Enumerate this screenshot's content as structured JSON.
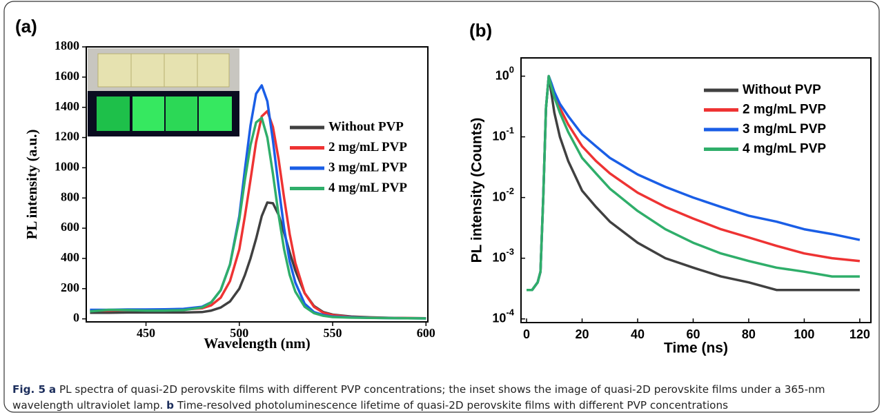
{
  "chart_data": [
    {
      "type": "line",
      "panel_label": "(a)",
      "x_label": "Wavelength (nm)",
      "y_label": "PL intensity (a.u.)",
      "x": [
        420,
        430,
        440,
        450,
        460,
        470,
        480,
        485,
        490,
        495,
        500,
        503,
        506,
        509,
        512,
        515,
        518,
        521,
        524,
        527,
        530,
        535,
        540,
        545,
        550,
        560,
        570,
        580,
        590,
        600
      ],
      "xlim": [
        418,
        601
      ],
      "xticks": [
        450,
        500,
        550,
        600
      ],
      "ylim": [
        -20,
        1800
      ],
      "yticks": [
        0,
        200,
        400,
        600,
        800,
        1000,
        1200,
        1400,
        1600,
        1800
      ],
      "legend": "upper right",
      "series": [
        {
          "name": "Without PVP",
          "color": "#404040",
          "values": [
            40,
            40,
            42,
            42,
            42,
            42,
            45,
            55,
            75,
            115,
            200,
            290,
            400,
            530,
            680,
            770,
            765,
            690,
            570,
            440,
            320,
            170,
            85,
            45,
            28,
            15,
            10,
            7,
            5,
            4
          ]
        },
        {
          "name": "2 mg/mL PVP",
          "color": "#ee3333",
          "values": [
            55,
            55,
            58,
            58,
            60,
            62,
            70,
            90,
            140,
            250,
            460,
            680,
            920,
            1170,
            1340,
            1375,
            1270,
            1060,
            800,
            560,
            370,
            170,
            80,
            40,
            25,
            12,
            8,
            6,
            5,
            4
          ]
        },
        {
          "name": "3 mg/mL PVP",
          "color": "#1a5ee6",
          "values": [
            60,
            60,
            62,
            62,
            63,
            66,
            80,
            110,
            190,
            360,
            680,
            990,
            1280,
            1490,
            1545,
            1440,
            1180,
            880,
            600,
            380,
            240,
            100,
            45,
            25,
            15,
            10,
            7,
            5,
            4,
            3
          ]
        },
        {
          "name": "4 mg/mL PVP",
          "color": "#2fae6a",
          "values": [
            50,
            60,
            58,
            55,
            55,
            58,
            75,
            110,
            190,
            360,
            660,
            920,
            1150,
            1300,
            1330,
            1200,
            960,
            690,
            460,
            290,
            180,
            80,
            38,
            20,
            12,
            8,
            6,
            5,
            4,
            3
          ]
        }
      ]
    },
    {
      "type": "line",
      "panel_label": "(b)",
      "x_label": "Time (ns)",
      "y_label": "PL intensity (Counts)",
      "x": [
        0,
        2,
        4,
        5,
        6,
        7,
        8,
        9,
        10,
        12,
        15,
        20,
        25,
        30,
        40,
        50,
        60,
        70,
        80,
        90,
        100,
        110,
        120
      ],
      "xlim": [
        -2,
        124
      ],
      "xticks": [
        0,
        20,
        40,
        60,
        80,
        100,
        120
      ],
      "ylim": [
        8.7e-05,
        2
      ],
      "log_y": true,
      "yticks": [
        {
          "value": 0.0001,
          "label": "10^-4"
        },
        {
          "value": 0.001,
          "label": "10^-3"
        },
        {
          "value": 0.01,
          "label": "10^-2"
        },
        {
          "value": 0.1,
          "label": "10^-1"
        },
        {
          "value": 1,
          "label": "10^0"
        }
      ],
      "legend": "upper right",
      "series": [
        {
          "name": "Without PVP",
          "color": "#404040",
          "values": [
            0.0003,
            0.0003,
            0.0004,
            0.0006,
            0.01,
            0.3,
            1,
            0.5,
            0.25,
            0.1,
            0.04,
            0.013,
            0.007,
            0.004,
            0.0018,
            0.001,
            0.0007,
            0.0005,
            0.0004,
            0.0003,
            0.0003,
            0.0003,
            0.0003
          ]
        },
        {
          "name": "2 mg/mL PVP",
          "color": "#ee3333",
          "values": [
            0.0003,
            0.0003,
            0.0004,
            0.0006,
            0.01,
            0.3,
            1,
            0.7,
            0.5,
            0.3,
            0.16,
            0.07,
            0.04,
            0.025,
            0.012,
            0.007,
            0.0045,
            0.003,
            0.0022,
            0.0016,
            0.0012,
            0.001,
            0.0009
          ]
        },
        {
          "name": "3 mg/mL PVP",
          "color": "#1a5ee6",
          "values": [
            0.0003,
            0.0003,
            0.0004,
            0.0006,
            0.01,
            0.3,
            1,
            0.75,
            0.55,
            0.35,
            0.22,
            0.11,
            0.07,
            0.045,
            0.024,
            0.015,
            0.01,
            0.007,
            0.005,
            0.004,
            0.003,
            0.0025,
            0.002
          ]
        },
        {
          "name": "4 mg/mL PVP",
          "color": "#2fae6a",
          "values": [
            0.0003,
            0.0003,
            0.0004,
            0.0006,
            0.01,
            0.3,
            1,
            0.65,
            0.45,
            0.25,
            0.12,
            0.045,
            0.025,
            0.014,
            0.006,
            0.003,
            0.0018,
            0.0012,
            0.0009,
            0.0007,
            0.0006,
            0.0005,
            0.0005
          ]
        }
      ]
    }
  ],
  "caption": {
    "figure_label": "Fig. 5",
    "parts": [
      {
        "label": "a",
        "text": "PL spectra of quasi-2D perovskite films with different PVP concentrations; the inset shows the image of quasi-2D perovskite films under a 365-nm wavelength ultraviolet lamp."
      },
      {
        "label": "b",
        "text": "Time-resolved photoluminescence lifetime of quasi-2D perovskite films with different PVP concentrations"
      }
    ]
  }
}
